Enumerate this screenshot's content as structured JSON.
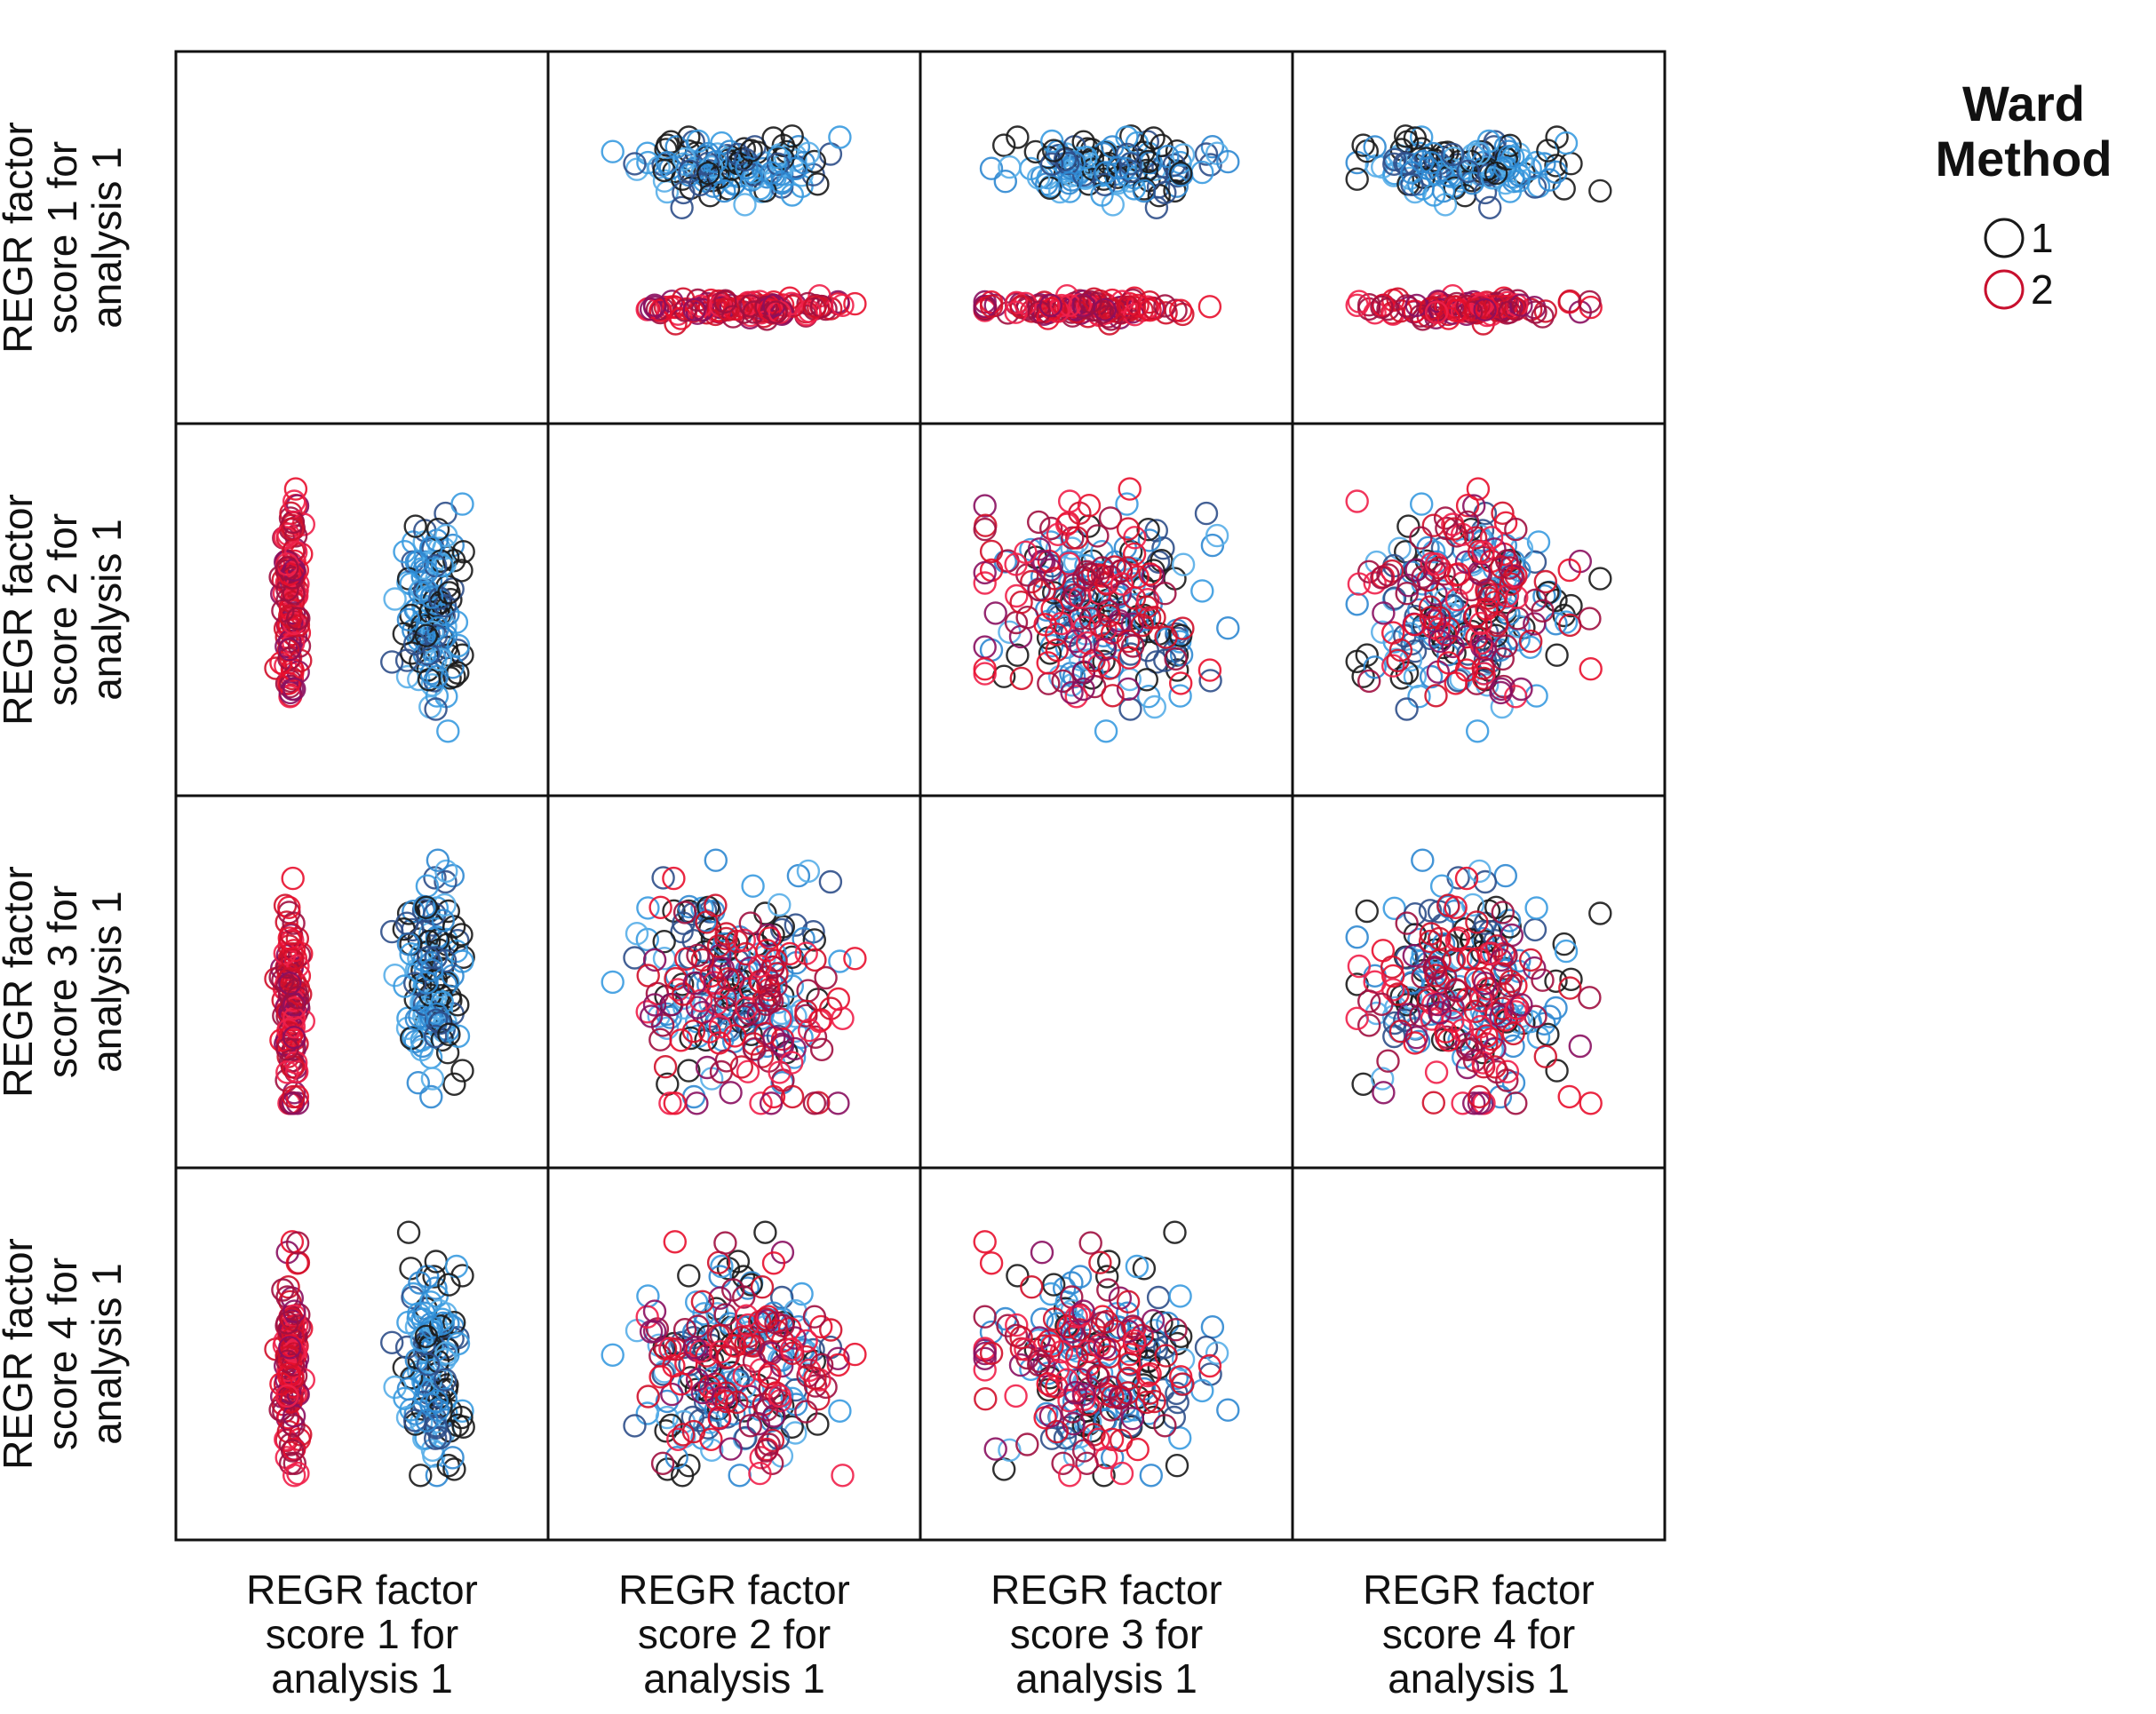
{
  "chart_data": {
    "type": "scatter",
    "subtype": "scatterplot-matrix",
    "title": "",
    "variables": [
      "REGR factor score 1 for analysis 1",
      "REGR factor score 2 for analysis 1",
      "REGR factor score 3 for analysis 1",
      "REGR factor score 4 for analysis 1"
    ],
    "variable_label_lines": [
      [
        "REGR factor",
        "score   1 for",
        "analysis 1"
      ],
      [
        "REGR factor",
        "score   2 for",
        "analysis 1"
      ],
      [
        "REGR factor",
        "score   3 for",
        "analysis 1"
      ],
      [
        "REGR factor",
        "score   4 for",
        "analysis 1"
      ]
    ],
    "diagonal_panels": "empty",
    "marker": "open-circle",
    "grid": false,
    "axis_ticks": false,
    "legend": {
      "title_lines": [
        "Ward",
        "Method"
      ],
      "position": "top-right",
      "entries": [
        {
          "label": "1",
          "color": "#1a1a1a"
        },
        {
          "label": "2",
          "color": "#c8102e"
        }
      ]
    },
    "series": [
      {
        "name": "1",
        "cluster_label": "1",
        "point_count": 130,
        "colors": [
          "#3a9be0",
          "#2f88d2",
          "#58aee8",
          "#1a1a1a",
          "#2f4f8a"
        ],
        "profile": {
          "f1": {
            "center": 0.78,
            "spread": 0.06
          },
          "f2": {
            "center": 0.46,
            "spread": 0.18
          },
          "f3": {
            "center": 0.5,
            "spread": 0.2
          },
          "f4": {
            "center": 0.46,
            "spread": 0.2
          }
        }
      },
      {
        "name": "2",
        "cluster_label": "2",
        "point_count": 120,
        "colors": [
          "#e8102e",
          "#d0102a",
          "#f0204a",
          "#a01040",
          "#8a1060"
        ],
        "profile": {
          "f1": {
            "center": 0.22,
            "spread": 0.018
          },
          "f2": {
            "center": 0.52,
            "spread": 0.2
          },
          "f3": {
            "center": 0.42,
            "spread": 0.2
          },
          "f4": {
            "center": 0.48,
            "spread": 0.18
          }
        }
      }
    ]
  }
}
